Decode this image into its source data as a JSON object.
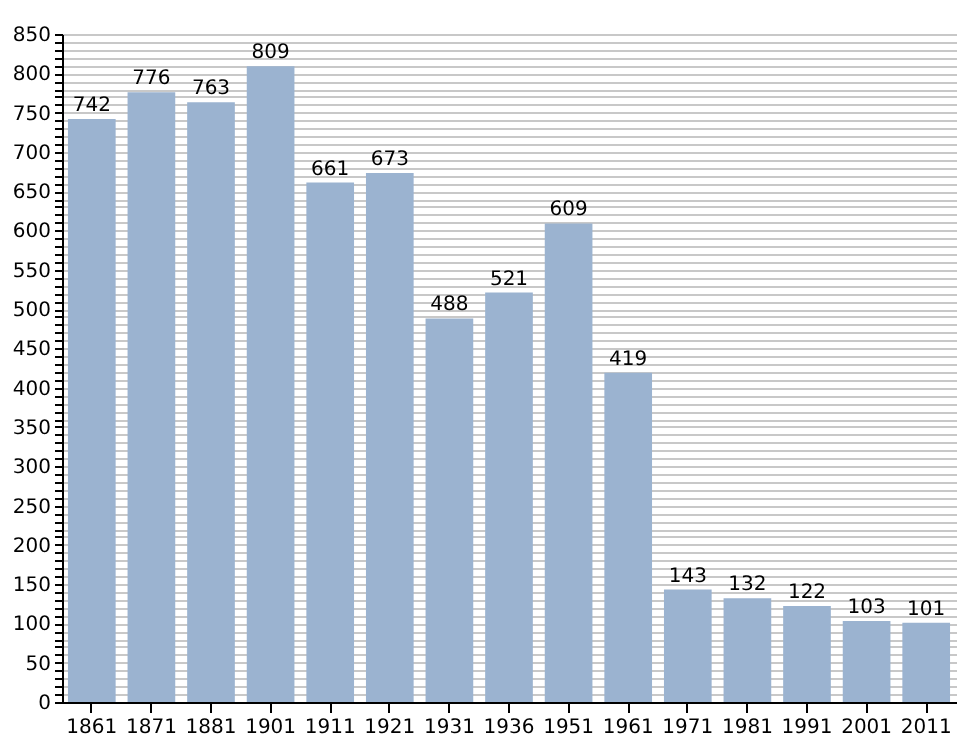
{
  "chart_data": {
    "type": "bar",
    "categories": [
      "1861",
      "1871",
      "1881",
      "1901",
      "1911",
      "1921",
      "1931",
      "1936",
      "1951",
      "1961",
      "1971",
      "1981",
      "1991",
      "2001",
      "2011"
    ],
    "values": [
      742,
      776,
      763,
      809,
      661,
      673,
      488,
      521,
      609,
      419,
      143,
      132,
      122,
      103,
      101
    ],
    "color": "#9bb3d0",
    "data_labels": true,
    "grid": "y",
    "ylim": [
      0,
      850
    ],
    "yticks": [
      0,
      {
        "value": 10,
        "label": null
      },
      {
        "value": 20,
        "label": null
      },
      {
        "value": 30,
        "label": null
      },
      {
        "value": 40,
        "label": null
      },
      50,
      {
        "value": 60,
        "label": null
      },
      {
        "value": 70,
        "label": null
      },
      {
        "value": 80,
        "label": null
      },
      {
        "value": 90,
        "label": null
      },
      100,
      {
        "value": 110,
        "label": null
      },
      {
        "value": 120,
        "label": null
      },
      {
        "value": 130,
        "label": null
      },
      {
        "value": 140,
        "label": null
      },
      150,
      {
        "value": 160,
        "label": null
      },
      {
        "value": 170,
        "label": null
      },
      {
        "value": 180,
        "label": null
      },
      {
        "value": 190,
        "label": null
      },
      200,
      {
        "value": 210,
        "label": null
      },
      {
        "value": 220,
        "label": null
      },
      {
        "value": 230,
        "label": null
      },
      {
        "value": 240,
        "label": null
      },
      250,
      {
        "value": 260,
        "label": null
      },
      {
        "value": 270,
        "label": null
      },
      {
        "value": 280,
        "label": null
      },
      {
        "value": 290,
        "label": null
      },
      300,
      {
        "value": 310,
        "label": null
      },
      {
        "value": 320,
        "label": null
      },
      {
        "value": 330,
        "label": null
      },
      {
        "value": 340,
        "label": null
      },
      350,
      {
        "value": 360,
        "label": null
      },
      {
        "value": 370,
        "label": null
      },
      {
        "value": 380,
        "label": null
      },
      {
        "value": 390,
        "label": null
      },
      400,
      {
        "value": 410,
        "label": null
      },
      {
        "value": 420,
        "label": null
      },
      {
        "value": 430,
        "label": null
      },
      {
        "value": 440,
        "label": null
      },
      450,
      {
        "value": 460,
        "label": null
      },
      {
        "value": 470,
        "label": null
      },
      {
        "value": 480,
        "label": null
      },
      {
        "value": 490,
        "label": null
      },
      500,
      {
        "value": 510,
        "label": null
      },
      {
        "value": 520,
        "label": null
      },
      {
        "value": 530,
        "label": null
      },
      {
        "value": 540,
        "label": null
      },
      550,
      {
        "value": 560,
        "label": null
      },
      {
        "value": 570,
        "label": null
      },
      {
        "value": 580,
        "label": null
      },
      {
        "value": 590,
        "label": null
      },
      600,
      {
        "value": 610,
        "label": null
      },
      {
        "value": 620,
        "label": null
      },
      {
        "value": 630,
        "label": null
      },
      {
        "value": 640,
        "label": null
      },
      650,
      {
        "value": 660,
        "label": null
      },
      {
        "value": 670,
        "label": null
      },
      {
        "value": 680,
        "label": null
      },
      {
        "value": 690,
        "label": null
      },
      700,
      {
        "value": 710,
        "label": null
      },
      {
        "value": 720,
        "label": null
      },
      {
        "value": 730,
        "label": null
      },
      {
        "value": 740,
        "label": null
      },
      750,
      {
        "value": 760,
        "label": null
      },
      {
        "value": 770,
        "label": null
      },
      {
        "value": 780,
        "label": null
      },
      {
        "value": 790,
        "label": null
      },
      800,
      {
        "value": 810,
        "label": null
      },
      {
        "value": 820,
        "label": null
      },
      {
        "value": 830,
        "label": null
      },
      {
        "value": 840,
        "label": null
      },
      850
    ]
  }
}
